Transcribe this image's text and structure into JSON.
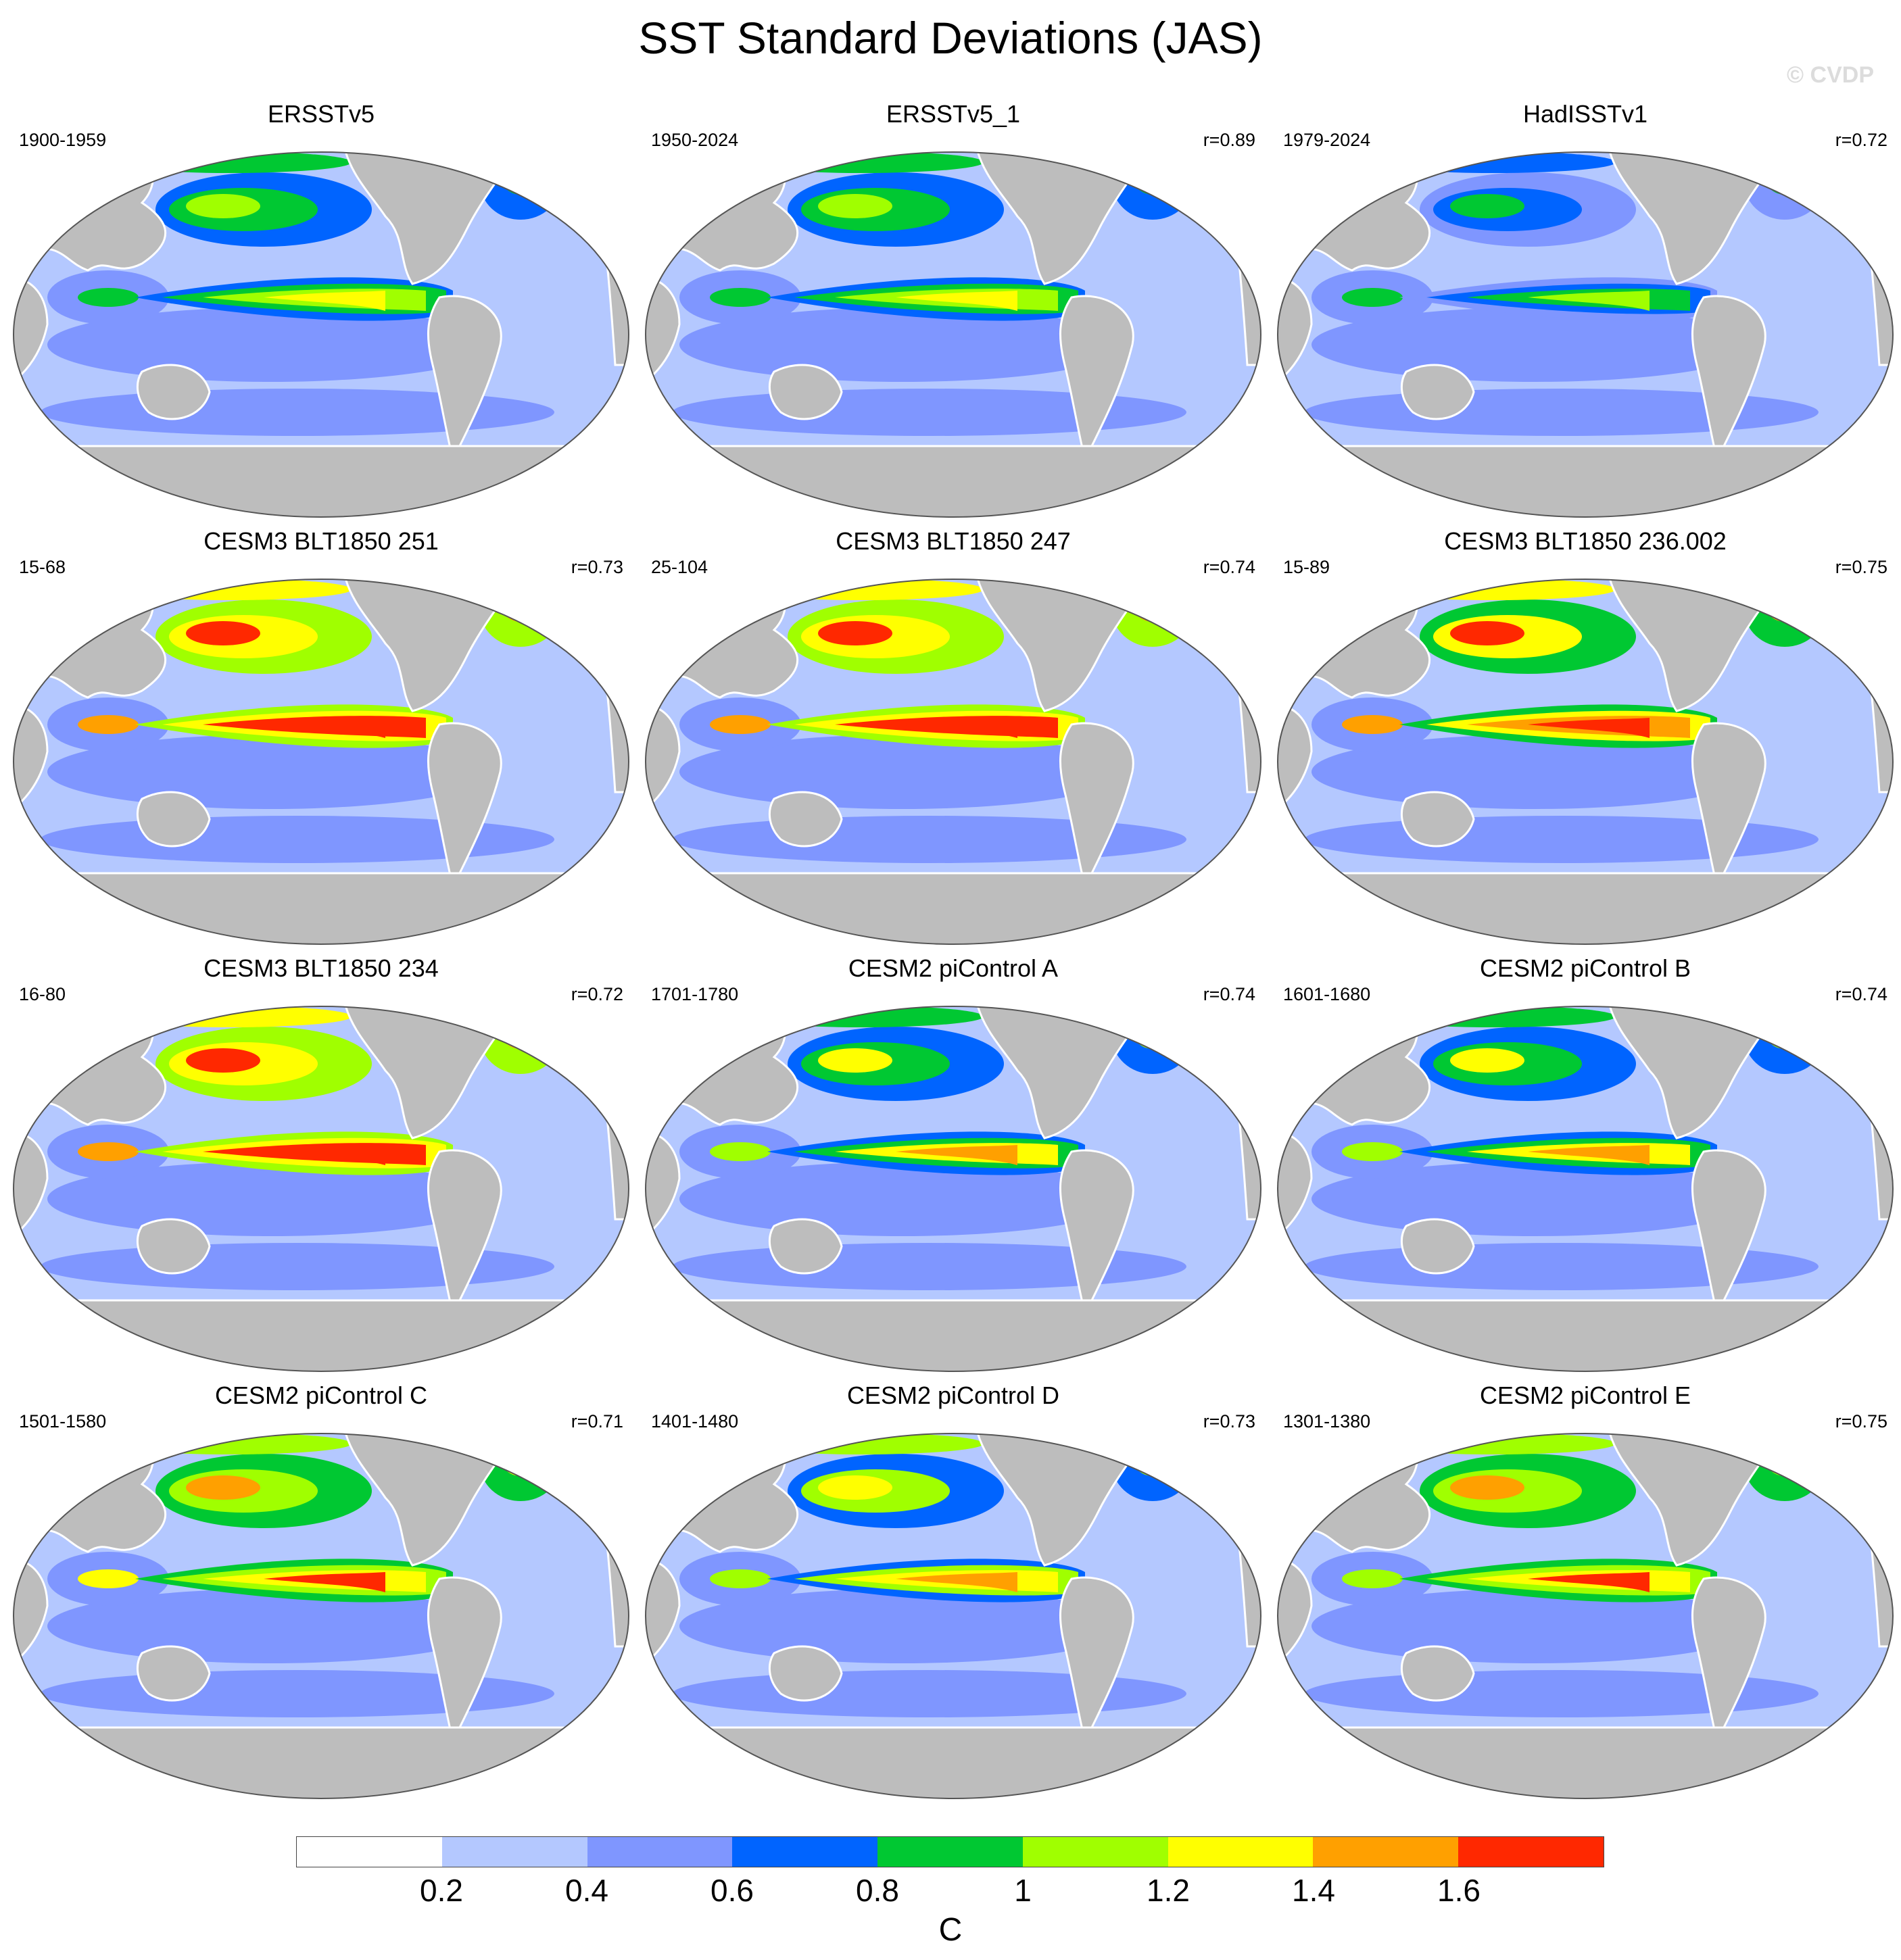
{
  "title": "SST Standard Deviations (JAS)",
  "watermark": "© CVDP",
  "colorbar": {
    "units": "C",
    "colors": [
      "#ffffff",
      "#b4c8ff",
      "#7f96ff",
      "#0064ff",
      "#00c832",
      "#a0ff00",
      "#ffff00",
      "#ffa000",
      "#ff2800"
    ],
    "labels": [
      "0.2",
      "0.4",
      "0.6",
      "0.8",
      "1",
      "1.2",
      "1.4",
      "1.6"
    ]
  },
  "map_colors": {
    "land": "#bdbdbd",
    "ocean_base": "#b4c8ff"
  },
  "panels": [
    {
      "title": "ERSSTv5",
      "period": "1900-1959",
      "corr": "",
      "intensity": 0.9
    },
    {
      "title": "ERSSTv5_1",
      "period": "1950-2024",
      "corr": "r=0.89",
      "intensity": 0.95
    },
    {
      "title": "HadISSTv1",
      "period": "1979-2024",
      "corr": "r=0.72",
      "intensity": 0.8
    },
    {
      "title": "CESM3 BLT1850 251",
      "period": "15-68",
      "corr": "r=0.73",
      "intensity": 1.5
    },
    {
      "title": "CESM3 BLT1850 247",
      "period": "25-104",
      "corr": "r=0.74",
      "intensity": 1.55
    },
    {
      "title": "CESM3 BLT1850 236.002",
      "period": "15-89",
      "corr": "r=0.75",
      "intensity": 1.45
    },
    {
      "title": "CESM3 BLT1850 234",
      "period": "16-80",
      "corr": "r=0.72",
      "intensity": 1.5
    },
    {
      "title": "CESM2 piControl A",
      "period": "1701-1780",
      "corr": "r=0.74",
      "intensity": 1.1
    },
    {
      "title": "CESM2 piControl B",
      "period": "1601-1680",
      "corr": "r=0.74",
      "intensity": 1.1
    },
    {
      "title": "CESM2 piControl C",
      "period": "1501-1580",
      "corr": "r=0.71",
      "intensity": 1.25
    },
    {
      "title": "CESM2 piControl D",
      "period": "1401-1480",
      "corr": "r=0.73",
      "intensity": 1.15
    },
    {
      "title": "CESM2 piControl E",
      "period": "1301-1380",
      "corr": "r=0.75",
      "intensity": 1.2
    }
  ]
}
